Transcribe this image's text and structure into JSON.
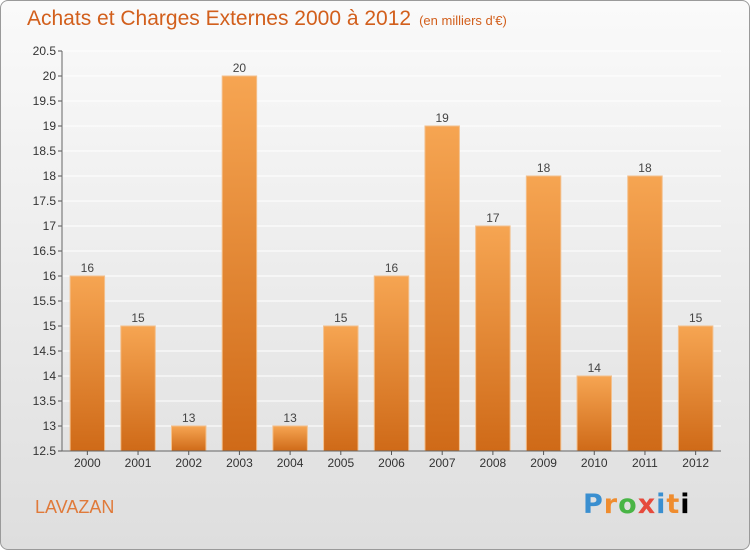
{
  "header": {
    "title": "Achats et Charges Externes 2000 à 2012",
    "subtitle": "(en milliers d'€)"
  },
  "commune": "LAVAZAN",
  "logo": {
    "letters": [
      "P",
      "r",
      "o",
      "x",
      "i",
      "t",
      "i"
    ]
  },
  "colors": {
    "bar_top": "#f6a552",
    "bar_bottom": "#cf6a18",
    "title": "#d25f1c"
  },
  "chart_data": {
    "type": "bar",
    "title": "Achats et Charges Externes 2000 à 2012",
    "subtitle": "(en milliers d'€)",
    "xlabel": "",
    "ylabel": "",
    "categories": [
      "2000",
      "2001",
      "2002",
      "2003",
      "2004",
      "2005",
      "2006",
      "2007",
      "2008",
      "2009",
      "2010",
      "2011",
      "2012"
    ],
    "values": [
      16,
      15,
      13,
      20,
      13,
      15,
      16,
      19,
      17,
      18,
      14,
      18,
      15
    ],
    "ylim": [
      12.5,
      20.5
    ],
    "yticks": [
      "12.5",
      "13",
      "13.5",
      "14",
      "14.5",
      "15",
      "15.5",
      "16",
      "16.5",
      "17",
      "17.5",
      "18",
      "18.5",
      "19",
      "19.5",
      "20",
      "20.5"
    ],
    "grid": true,
    "legend": "none"
  }
}
